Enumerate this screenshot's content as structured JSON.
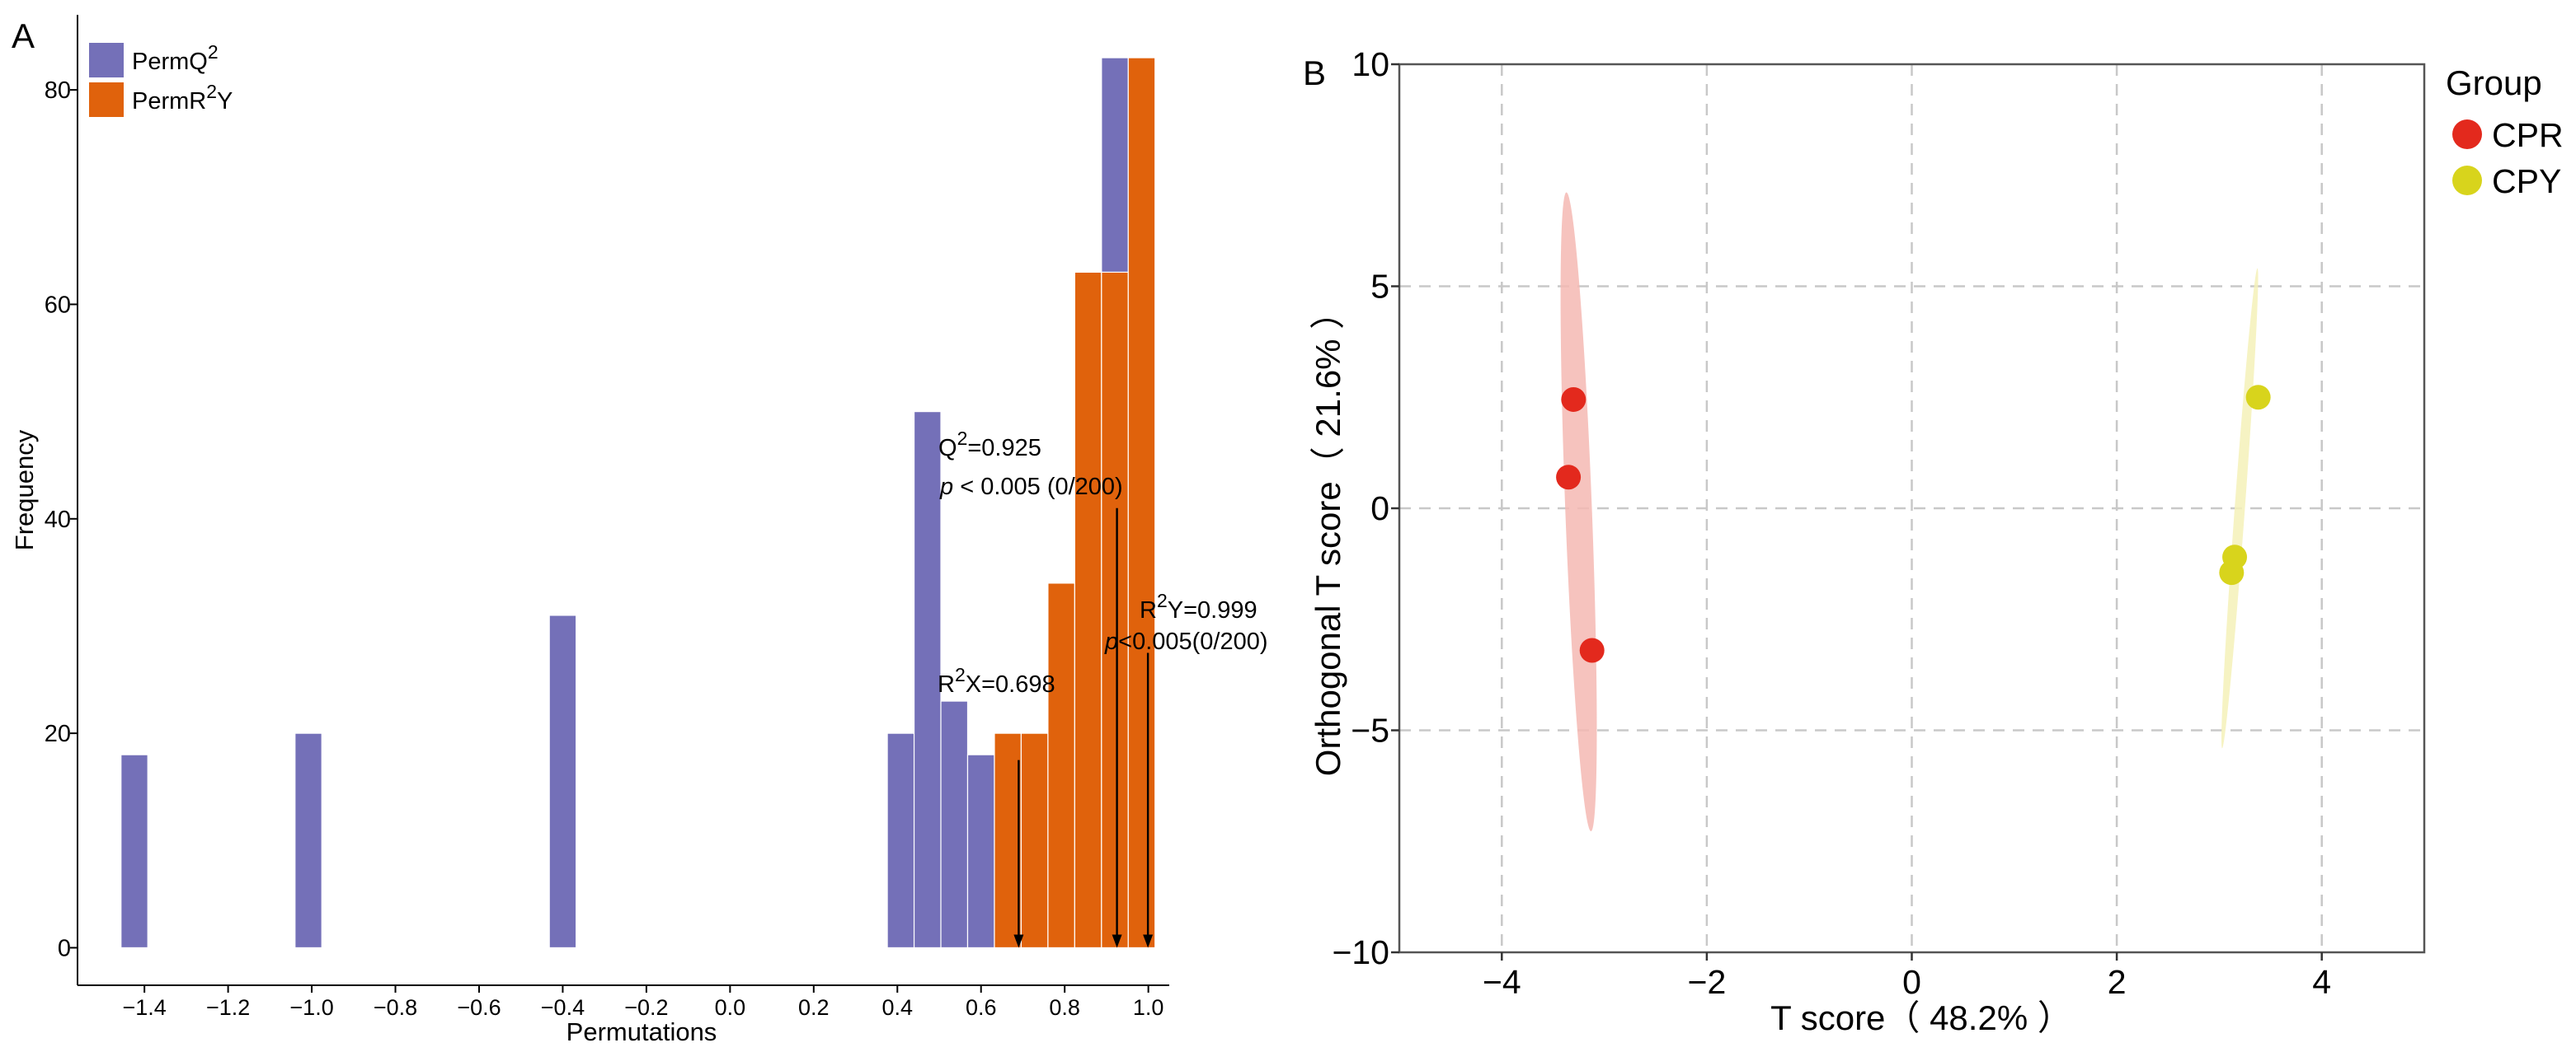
{
  "chart_data": [
    {
      "panel_label": "A",
      "type": "bar",
      "xlabel": "Permutations",
      "ylabel": "Frequency",
      "xlim": [
        -1.56,
        1.05
      ],
      "ylim": [
        -3.5,
        87
      ],
      "xticks": [
        -1.4,
        -1.2,
        -1.0,
        -0.8,
        -0.6,
        -0.4,
        -0.2,
        0.0,
        0.2,
        0.4,
        0.6,
        0.8,
        1.0
      ],
      "xtick_labels": [
        "−1.4",
        "−1.2",
        "−1.0",
        "−0.8",
        "−0.6",
        "−0.4",
        "−0.2",
        "0.0",
        "0.2",
        "0.4",
        "0.6",
        "0.8",
        "1.0"
      ],
      "yticks": [
        0,
        20,
        40,
        60,
        80
      ],
      "ytick_labels": [
        "0",
        "20",
        "40",
        "60",
        "80"
      ],
      "bar_width": 0.064,
      "legend": {
        "position": "top-left",
        "items": [
          {
            "prefix": "PermQ",
            "sup": "2",
            "suffix": "",
            "color": "#7470b8"
          },
          {
            "prefix": "PermR",
            "sup": "2",
            "suffix": "Y",
            "color": "#e0620c"
          }
        ]
      },
      "series": [
        {
          "name": "PermQ2",
          "color": "#7470b8",
          "bars": [
            {
              "x": -1.424,
              "y": 18
            },
            {
              "x": -1.008,
              "y": 20
            },
            {
              "x": -0.4,
              "y": 31
            },
            {
              "x": 0.408,
              "y": 20
            },
            {
              "x": 0.472,
              "y": 50
            },
            {
              "x": 0.536,
              "y": 23
            },
            {
              "x": 0.6,
              "y": 18
            },
            {
              "x": 0.92,
              "y": 83
            }
          ]
        },
        {
          "name": "PermR2Y",
          "color": "#e0620c",
          "bars": [
            {
              "x": 0.664,
              "y": 20
            },
            {
              "x": 0.728,
              "y": 20
            },
            {
              "x": 0.792,
              "y": 34
            },
            {
              "x": 0.856,
              "y": 63
            },
            {
              "x": 0.92,
              "y": 63
            },
            {
              "x": 0.984,
              "y": 83
            }
          ]
        }
      ],
      "annotations": [
        {
          "x": 0.69,
          "y_top": 17.5,
          "line1_prefix": "R",
          "line1_sup": "2",
          "line1_suffix": "X=0.698",
          "line2_italic": "",
          "line2_rest": ""
        },
        {
          "x": 0.925,
          "y_top": 41,
          "line1_prefix": "Q",
          "line1_sup": "2",
          "line1_suffix": "=0.925",
          "line2_italic": "p",
          "line2_rest": " < 0.005 (0/200)"
        },
        {
          "x": 0.999,
          "y_top": 27.5,
          "line1_prefix": "R",
          "line1_sup": "2",
          "line1_suffix": "Y=0.999",
          "line2_italic": "p",
          "line2_rest": "<0.005(0/200)"
        }
      ]
    },
    {
      "panel_label": "B",
      "type": "scatter",
      "xlabel": "T score（ 48.2% ）",
      "ylabel": "Orthogonal T score（ 21.6% ）",
      "xlim": [
        -5,
        5
      ],
      "ylim": [
        -10,
        10
      ],
      "xticks": [
        -4,
        -2,
        0,
        2,
        4
      ],
      "xtick_labels": [
        "−4",
        "−2",
        "0",
        "2",
        "4"
      ],
      "yticks": [
        -10,
        -5,
        0,
        5,
        10
      ],
      "ytick_labels": [
        "−10",
        "−5",
        "0",
        "5",
        "10"
      ],
      "grid": true,
      "legend": {
        "title": "Group",
        "position": "right"
      },
      "series": [
        {
          "name": "CPR",
          "color": "#e3291d",
          "ellipse_fill": "#f5b8b3",
          "points": [
            {
              "x": -3.3,
              "y": 2.45
            },
            {
              "x": -3.35,
              "y": 0.7
            },
            {
              "x": -3.12,
              "y": -3.2
            }
          ],
          "ellipse": {
            "cx": -3.25,
            "cy": -0.08,
            "rx": 0.13,
            "ry": 7.2,
            "angle_deg": -2.2
          }
        },
        {
          "name": "CPY",
          "color": "#d8d41c",
          "ellipse_fill": "#f4f1b8",
          "points": [
            {
              "x": 3.38,
              "y": 2.5
            },
            {
              "x": 3.15,
              "y": -1.1
            },
            {
              "x": 3.12,
              "y": -1.45
            }
          ],
          "ellipse": {
            "cx": 3.2,
            "cy": 0,
            "rx": 0.05,
            "ry": 5.42,
            "angle_deg": 4.2
          }
        }
      ]
    }
  ]
}
